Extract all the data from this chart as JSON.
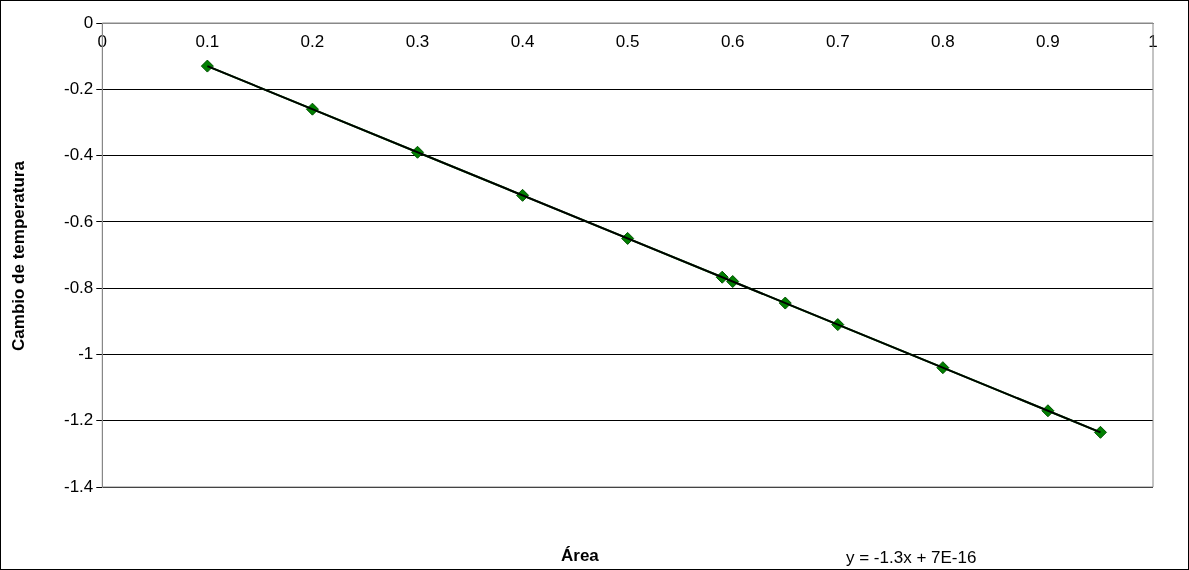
{
  "chart_data": {
    "type": "line",
    "xlabel": "Área",
    "ylabel": "Cambio de temperatura",
    "x": [
      0.1,
      0.2,
      0.3,
      0.4,
      0.5,
      0.59,
      0.6,
      0.65,
      0.7,
      0.8,
      0.9,
      0.95
    ],
    "series": [
      {
        "color": "#008000",
        "values": [
          -0.13,
          -0.26,
          -0.39,
          -0.52,
          -0.65,
          -0.767,
          -0.78,
          -0.845,
          -0.91,
          -1.04,
          -1.17,
          -1.235
        ],
        "marker": "diamond"
      },
      {
        "type": "line",
        "color": "#000000",
        "x": [
          0.1,
          0.95
        ],
        "values": [
          -0.13,
          -1.235
        ],
        "marker": "none"
      }
    ],
    "xlim": [
      0,
      1
    ],
    "xticks": [
      0,
      0.1,
      0.2,
      0.3,
      0.4,
      0.5,
      0.6,
      0.7,
      0.8,
      0.9,
      1
    ],
    "ylim": [
      -1.4,
      0
    ],
    "yticks": [
      -1.4,
      -1.2,
      -1,
      -0.8,
      -0.6,
      -0.4,
      -0.2,
      0
    ],
    "grid": "y",
    "legend": false,
    "line_style": "solid",
    "annotations": [
      "y = -1.3x + 7E-16"
    ]
  }
}
